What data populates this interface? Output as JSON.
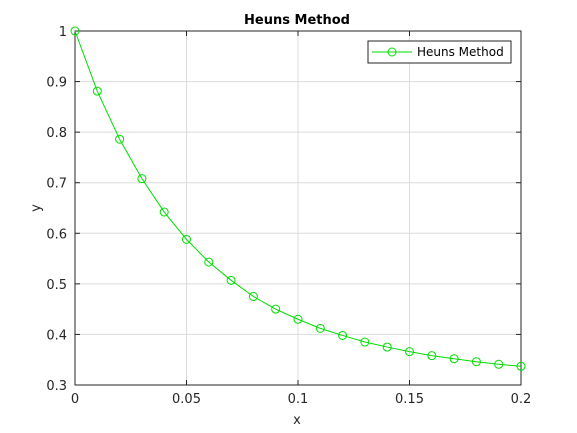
{
  "chart_data": {
    "type": "line",
    "title": "Heuns Method",
    "xlabel": "x",
    "ylabel": "y",
    "xlim": [
      0,
      0.2
    ],
    "ylim": [
      0.3,
      1
    ],
    "xticks": [
      0,
      0.05,
      0.1,
      0.15,
      0.2
    ],
    "xtick_labels": [
      "0",
      "0.05",
      "0.1",
      "0.15",
      "0.2"
    ],
    "yticks": [
      0.3,
      0.4,
      0.5,
      0.6,
      0.7,
      0.8,
      0.9,
      1
    ],
    "ytick_labels": [
      "0.3",
      "0.4",
      "0.5",
      "0.6",
      "0.7",
      "0.8",
      "0.9",
      "1"
    ],
    "grid": true,
    "legend_position": "top-right",
    "series": [
      {
        "name": "Heuns Method",
        "color": "#00dd00",
        "marker": "circle",
        "x": [
          0,
          0.01,
          0.02,
          0.03,
          0.04,
          0.05,
          0.06,
          0.07,
          0.08,
          0.09,
          0.1,
          0.11,
          0.12,
          0.13,
          0.14,
          0.15,
          0.16,
          0.17,
          0.18,
          0.19,
          0.2
        ],
        "y": [
          1.0,
          0.881,
          0.786,
          0.708,
          0.642,
          0.588,
          0.543,
          0.507,
          0.475,
          0.45,
          0.43,
          0.412,
          0.398,
          0.385,
          0.375,
          0.366,
          0.358,
          0.352,
          0.346,
          0.341,
          0.337
        ]
      }
    ]
  }
}
